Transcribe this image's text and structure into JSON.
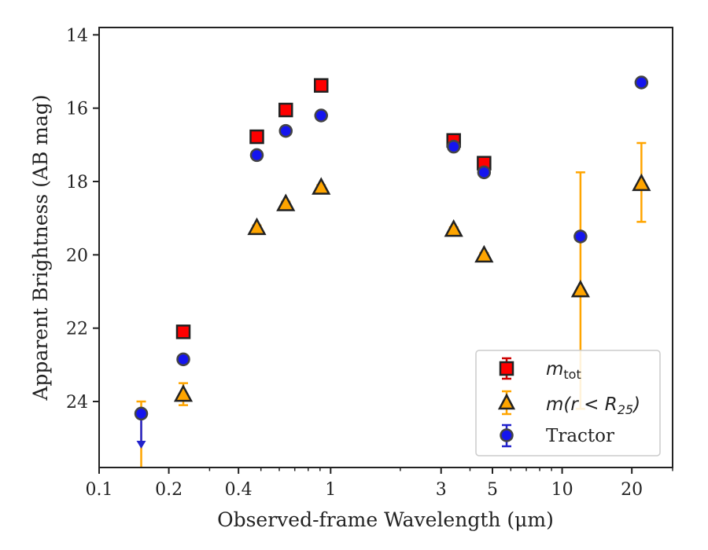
{
  "chart_data": {
    "type": "scatter",
    "title": "",
    "xlabel": "Observed-frame Wavelength (μm)",
    "ylabel": "Apparent Brightness (AB mag)",
    "xscale": "log",
    "xlim": [
      0.1,
      30
    ],
    "ylim": [
      25.8,
      13.8
    ],
    "y_inverted": true,
    "grid": false,
    "legend_position": "lower-right",
    "x_ticks": [
      {
        "value": 0.1,
        "label": "0.1"
      },
      {
        "value": 0.2,
        "label": "0.2"
      },
      {
        "value": 0.4,
        "label": "0.4"
      },
      {
        "value": 1,
        "label": "1"
      },
      {
        "value": 3,
        "label": "3"
      },
      {
        "value": 5,
        "label": "5"
      },
      {
        "value": 10,
        "label": "10"
      },
      {
        "value": 20,
        "label": "20"
      }
    ],
    "y_ticks": [
      {
        "value": 14,
        "label": "14"
      },
      {
        "value": 16,
        "label": "16"
      },
      {
        "value": 18,
        "label": "18"
      },
      {
        "value": 20,
        "label": "20"
      },
      {
        "value": 22,
        "label": "22"
      },
      {
        "value": 24,
        "label": "24"
      }
    ],
    "series": [
      {
        "name": "m_tot",
        "legend_main": "m",
        "legend_sub": "tot",
        "marker": "square",
        "color": "#ff0000",
        "errcolor": "#cc0000",
        "points": [
          {
            "x": 0.231,
            "y": 22.1,
            "err": 0.1
          },
          {
            "x": 0.48,
            "y": 16.78,
            "err": 0.08
          },
          {
            "x": 0.64,
            "y": 16.05,
            "err": 0.08
          },
          {
            "x": 0.91,
            "y": 15.38,
            "err": 0.08
          },
          {
            "x": 3.4,
            "y": 16.88,
            "err": 0.1
          },
          {
            "x": 4.6,
            "y": 17.5,
            "err": 0.12
          }
        ]
      },
      {
        "name": "m(r < R25)",
        "legend_main": "m(r < R",
        "legend_sub": "25",
        "legend_close": ")",
        "marker": "triangle",
        "color": "#ffa500",
        "errcolor": "#ffa500",
        "points": [
          {
            "x": 0.152,
            "y": 26.1,
            "err_low": 26.1,
            "err_high": 24.0,
            "limit": true
          },
          {
            "x": 0.231,
            "y": 23.8,
            "err": 0.3
          },
          {
            "x": 0.48,
            "y": 19.25,
            "err": 0.05
          },
          {
            "x": 0.64,
            "y": 18.6,
            "err": 0.05
          },
          {
            "x": 0.91,
            "y": 18.15,
            "err": 0.05
          },
          {
            "x": 3.4,
            "y": 19.3,
            "err": 0.05
          },
          {
            "x": 4.6,
            "y": 20.0,
            "err": 0.05
          },
          {
            "x": 12.0,
            "y": 20.95,
            "err_low": 24.2,
            "err_high": 17.75
          },
          {
            "x": 22.0,
            "y": 18.05,
            "err_low": 19.1,
            "err_high": 16.95
          }
        ]
      },
      {
        "name": "Tractor",
        "marker": "circle",
        "color": "#1515ee",
        "errcolor": "#2222cc",
        "points": [
          {
            "x": 0.152,
            "y": 24.33,
            "upper_limit": true,
            "arrow_to": 25.2
          },
          {
            "x": 0.231,
            "y": 22.85,
            "err": 0.05
          },
          {
            "x": 0.48,
            "y": 17.28,
            "err": 0.05
          },
          {
            "x": 0.64,
            "y": 16.62,
            "err": 0.05
          },
          {
            "x": 0.91,
            "y": 16.2,
            "err": 0.05
          },
          {
            "x": 3.4,
            "y": 17.05,
            "err": 0.05
          },
          {
            "x": 4.6,
            "y": 17.75,
            "err": 0.05
          },
          {
            "x": 12.0,
            "y": 19.5,
            "err": 0.08
          },
          {
            "x": 22.0,
            "y": 15.3,
            "err": 0.05
          }
        ]
      }
    ]
  },
  "legend": {
    "m_main": "m",
    "m_sub": "tot",
    "m25_main": "m(r < R",
    "m25_sub": "25",
    "m25_close": ")",
    "tractor_label": "Tractor"
  }
}
